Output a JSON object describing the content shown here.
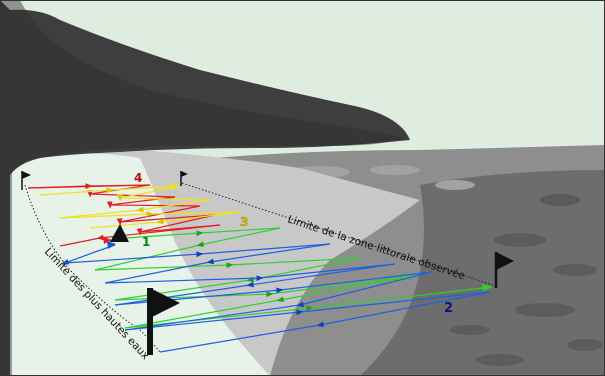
{
  "labels": {
    "zone_limit": "Limite de la zone littorale observée",
    "high_water": "Limite des plus hautes eaux",
    "n1": "1",
    "n2": "2",
    "n3": "3",
    "n4": "4"
  },
  "colors": {
    "sky": "#dfece0",
    "cliff_dark": "#3e3e3e",
    "cliff_edge": "#5a5a5a",
    "sea_mid": "#8e8e8e",
    "sea_dark": "#6d6d6d",
    "beach_light": "#c8c8c8",
    "strand": "#e7f2e8",
    "red": "#e02020",
    "yellow": "#f0e020",
    "green": "#30d030",
    "blue": "#2060e0",
    "label_red": "#b01010",
    "label_yellow": "#d8c000",
    "label_green": "#108010",
    "label_blue": "#101080"
  },
  "icons": {
    "flag": "flag-icon",
    "observer": "observer-triangle-icon"
  }
}
